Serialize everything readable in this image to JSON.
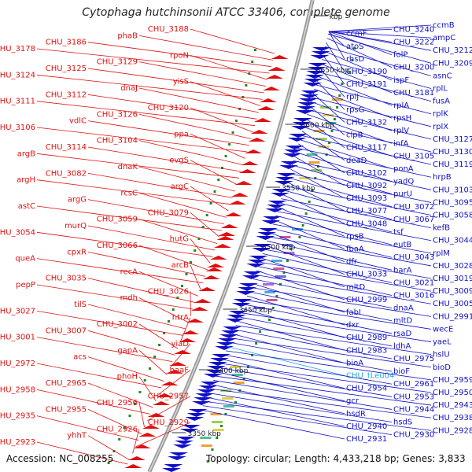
{
  "title": "Cytophaga hutchinsonii ATCC 33406, complete genome",
  "footer": {
    "accession": "Accession: NC_008255",
    "topology": "Topology: circular; Length: 4,433,218 bp; Genes: 3,833"
  },
  "colors": {
    "forward": "#e01010",
    "reverse": "#1010c8",
    "trna": "#22aadd",
    "backbone": "#9a9a9a",
    "gc_marker": "#1f8a1f"
  },
  "scale_labels": [
    "3650 kbp",
    "3600 kbp",
    "3550 kbp",
    "3500 kbp",
    "3450 kbp",
    "3400 kbp",
    "3350 kbp",
    "kbp"
  ],
  "left_labels": [
    "CHU_3188",
    "phaB",
    "CHU_3186",
    "CHU_3178",
    "rpoN",
    "CHU_3129",
    "CHU_3125",
    "CHU_3124",
    "yisS",
    "dnaJ",
    "CHU_3112",
    "CHU_3111",
    "CHU_3120",
    "CHU_3126",
    "vdlC",
    "CHU_3106",
    "ppa",
    "CHU_3104",
    "CHU_3114",
    "argB",
    "evgS",
    "dnaK",
    "CHU_3082",
    "argH",
    "argC",
    "rcsC",
    "argG",
    "astC",
    "CHU_3079",
    "CHU_3059",
    "murQ",
    "CHU_3054",
    "hutG",
    "CHU_3066",
    "cpxR",
    "queA",
    "arcB",
    "recA",
    "CHU_3035",
    "pepP",
    "CHU_3026",
    "mdh",
    "tilS",
    "CHU_3027",
    "htrA",
    "CHU_3002",
    "CHU_3007",
    "CHU_3001",
    "yiaD",
    "gapA",
    "acs",
    "CHU_2972",
    "paaF",
    "phoH",
    "CHU_2965",
    "CHU_2958",
    "CHU_2957",
    "CHU_2956",
    "CHU_2955",
    "CHU_2935",
    "CHU_2929",
    "CHU_2926",
    "yhhT",
    "CHU_2923"
  ],
  "right_labels": [
    "ccmB",
    "CHU_3240",
    "ccmF",
    "ampC",
    "CHU_3222",
    "atoS",
    "CHU_3212",
    "folP",
    "rhsD",
    "CHU_3209",
    "CHU_3200",
    "CHU_3190",
    "asnC",
    "ispF",
    "CHU_3191",
    "rplL",
    "CHU_3181",
    "rplJ",
    "fusA",
    "rplA",
    "rpsG",
    "rplK",
    "rpsH",
    "CHU_3132",
    "rplX",
    "rplV",
    "clpB",
    "CHU_3127",
    "infA",
    "CHU_3117",
    "CHU_3130",
    "CHU_3105",
    "deaD",
    "CHU_3119",
    "ponA",
    "CHU_3102",
    "hrpB",
    "yadQ",
    "CHU_3092",
    "CHU_3103",
    "purU",
    "CHU_3093",
    "CHU_3095",
    "CHU_3072",
    "CHU_3077",
    "CHU_3058",
    "CHU_3067",
    "CHU_3048",
    "kefB",
    "tsf",
    "rpsB",
    "CHU_3044",
    "eutB",
    "fbaA",
    "rplM",
    "CHU_3043",
    "dfr",
    "CHU_3028",
    "barA",
    "CHU_3033",
    "CHU_3019",
    "CHU_3021",
    "mltD",
    "CHU_3009",
    "CHU_3016",
    "CHU_2999",
    "CHU_3005",
    "dnaA",
    "fabI",
    "CHU_2991",
    "mltD",
    "dxr",
    "wecE",
    "rsaD",
    "CHU_2989",
    "yaeL",
    "ldhA",
    "CHU_2983",
    "hslU",
    "CHU_2975",
    "bioA",
    "bioD",
    "bioF",
    "CHU_tLeu04",
    "CHU_2959",
    "CHU_2961",
    "CHU_2954",
    "CHU_2950",
    "CHU_2953",
    "gcr",
    "CHU_2943",
    "CHU_2944",
    "hsdR",
    "CHU_2938",
    "hsdS",
    "CHU_2940",
    "CHU_2928",
    "CHU_2930",
    "CHU_2931"
  ],
  "trna_label": "CHU_tLeu04"
}
